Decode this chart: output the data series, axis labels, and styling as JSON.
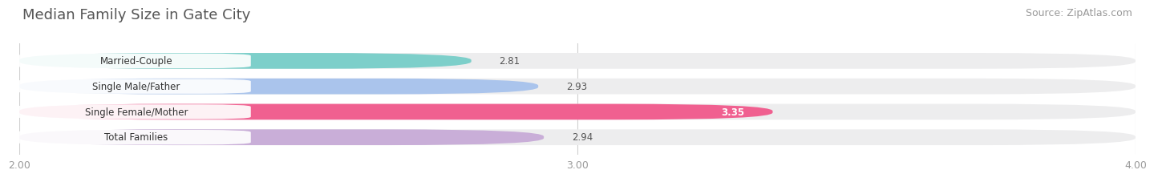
{
  "title": "Median Family Size in Gate City",
  "source": "Source: ZipAtlas.com",
  "categories": [
    "Married-Couple",
    "Single Male/Father",
    "Single Female/Mother",
    "Total Families"
  ],
  "values": [
    2.81,
    2.93,
    3.35,
    2.94
  ],
  "bar_colors": [
    "#7dcfca",
    "#aac4ec",
    "#f06090",
    "#c9aed8"
  ],
  "bar_bg_color": "#ededee",
  "xlim": [
    2.0,
    4.0
  ],
  "xticks": [
    2.0,
    3.0,
    4.0
  ],
  "xtick_labels": [
    "2.00",
    "3.00",
    "4.00"
  ],
  "highlight_bar": 2,
  "background_color": "#ffffff",
  "title_fontsize": 13,
  "source_fontsize": 9,
  "label_fontsize": 8.5,
  "value_fontsize": 8.5,
  "tick_fontsize": 9
}
